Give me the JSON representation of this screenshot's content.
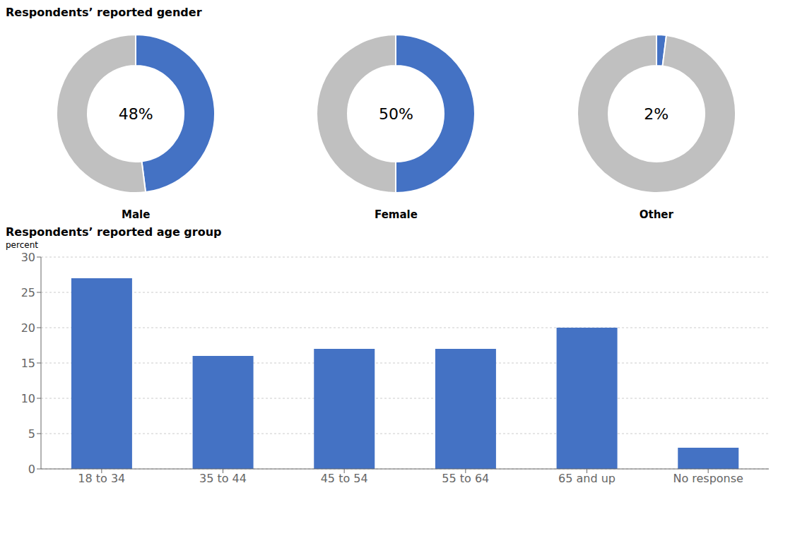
{
  "chart_data": [
    {
      "type": "donut",
      "title": "Respondents’ reported gender",
      "colors": [
        "#4472c4",
        "#c0c0c0"
      ],
      "data_labels": true,
      "series": [
        {
          "name": "Male",
          "values": [
            48,
            52
          ],
          "value_labels": [
            "48%",
            null
          ]
        },
        {
          "name": "Female",
          "values": [
            50,
            50
          ],
          "value_labels": [
            "50%",
            null
          ]
        },
        {
          "name": "Other",
          "values": [
            2,
            98
          ],
          "value_labels": [
            "2%",
            null
          ]
        }
      ]
    },
    {
      "type": "bar",
      "title": "Respondents’ reported age group",
      "ylabel": "percent",
      "categories": [
        "18 to 34",
        "35 to 44",
        "45 to 54",
        "55 to 64",
        "65 and up",
        "No response"
      ],
      "values": [
        27,
        16,
        17,
        17,
        20,
        3
      ],
      "color": "#4472c4",
      "ylim": [
        0,
        30
      ],
      "yticks": [
        0,
        5,
        10,
        15,
        20,
        25,
        30
      ],
      "grid": true
    }
  ]
}
